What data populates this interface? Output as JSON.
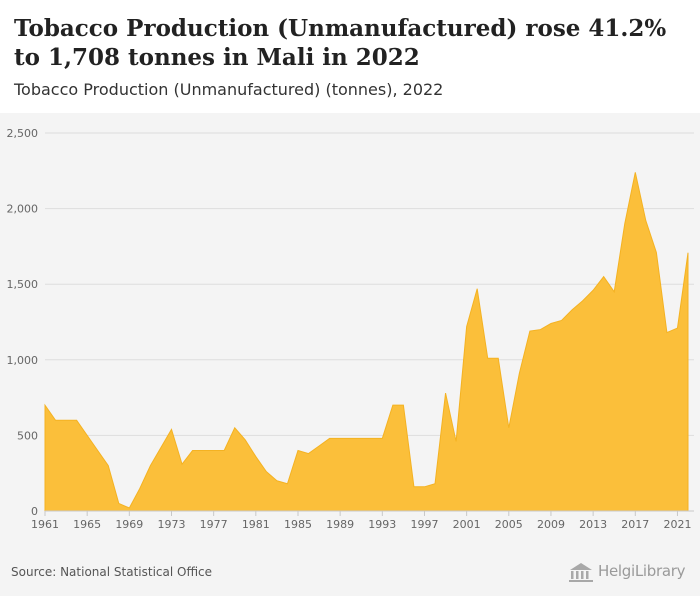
{
  "header": {
    "title": "Tobacco Production (Unmanufactured) rose 41.2% to 1,708 tonnes in Mali in 2022",
    "subtitle": "Tobacco Production (Unmanufactured) (tonnes), 2022"
  },
  "footer": {
    "source": "Source: National Statistical Office",
    "logo_text": "HelgiLibrary"
  },
  "colors": {
    "area_fill": "#fbbf3a",
    "area_stroke": "#f4b222",
    "grid": "#dddddd",
    "panel_bg": "#f4f4f4"
  },
  "chart_data": {
    "type": "area",
    "title": "Tobacco Production (Unmanufactured) rose 41.2% to 1,708 tonnes in Mali in 2022",
    "subtitle": "Tobacco Production (Unmanufactured) (tonnes), 2022",
    "xlabel": "",
    "ylabel": "",
    "ylim": [
      0,
      2500
    ],
    "xlim": [
      1961,
      2022
    ],
    "y_ticks": [
      0,
      500,
      1000,
      1500,
      2000,
      2500
    ],
    "y_tick_labels": [
      "0",
      "500",
      "1,000",
      "1,500",
      "2,000",
      "2,500"
    ],
    "x_ticks": [
      1961,
      1965,
      1969,
      1973,
      1977,
      1981,
      1985,
      1989,
      1993,
      1997,
      2001,
      2005,
      2009,
      2013,
      2017,
      2021
    ],
    "x_tick_labels": [
      "1961",
      "1965",
      "1969",
      "1973",
      "1977",
      "1981",
      "1985",
      "1989",
      "1993",
      "1997",
      "2001",
      "2005",
      "2009",
      "2013",
      "2017",
      "2021"
    ],
    "grid": true,
    "legend": "none",
    "x": [
      1961,
      1962,
      1963,
      1964,
      1965,
      1966,
      1967,
      1968,
      1969,
      1970,
      1971,
      1972,
      1973,
      1974,
      1975,
      1976,
      1977,
      1978,
      1979,
      1980,
      1981,
      1982,
      1983,
      1984,
      1985,
      1986,
      1987,
      1988,
      1989,
      1990,
      1991,
      1992,
      1993,
      1994,
      1995,
      1996,
      1997,
      1998,
      1999,
      2000,
      2001,
      2002,
      2003,
      2004,
      2005,
      2006,
      2007,
      2008,
      2009,
      2010,
      2011,
      2012,
      2013,
      2014,
      2015,
      2016,
      2017,
      2018,
      2019,
      2020,
      2021,
      2022
    ],
    "series": [
      {
        "values": [
          700,
          600,
          600,
          600,
          500,
          400,
          300,
          50,
          20,
          150,
          300,
          420,
          540,
          310,
          400,
          400,
          400,
          400,
          550,
          470,
          360,
          260,
          200,
          180,
          400,
          380,
          430,
          480,
          480,
          480,
          480,
          480,
          480,
          700,
          700,
          160,
          160,
          180,
          780,
          460,
          1220,
          1470,
          1010,
          1010,
          550,
          910,
          1190,
          1200,
          1240,
          1260,
          1330,
          1390,
          1460,
          1550,
          1450,
          1900,
          2240,
          1920,
          1710,
          1180,
          1210,
          1708
        ]
      }
    ]
  }
}
